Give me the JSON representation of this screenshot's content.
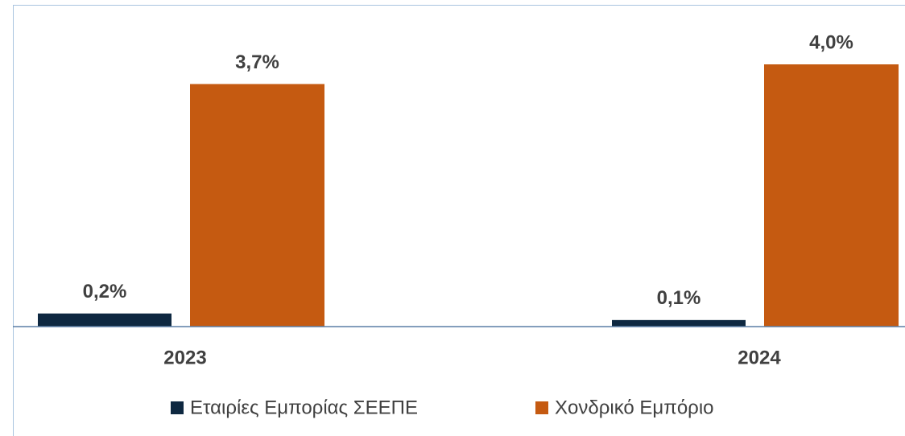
{
  "chart_data": {
    "type": "bar",
    "categories": [
      "2023",
      "2024"
    ],
    "series": [
      {
        "name": "Εταιρίες Εμπορίας ΣΕΕΠΕ",
        "color": "#0e2841",
        "values": [
          0.2,
          0.1
        ],
        "value_labels": [
          "0,2%",
          "0,1%"
        ]
      },
      {
        "name": "Χονδρικό Εμπόριο",
        "color": "#c55a11",
        "values": [
          3.7,
          4.0
        ],
        "value_labels": [
          "3,7%",
          "4,0%"
        ]
      }
    ],
    "ylim": [
      0,
      4
    ]
  }
}
